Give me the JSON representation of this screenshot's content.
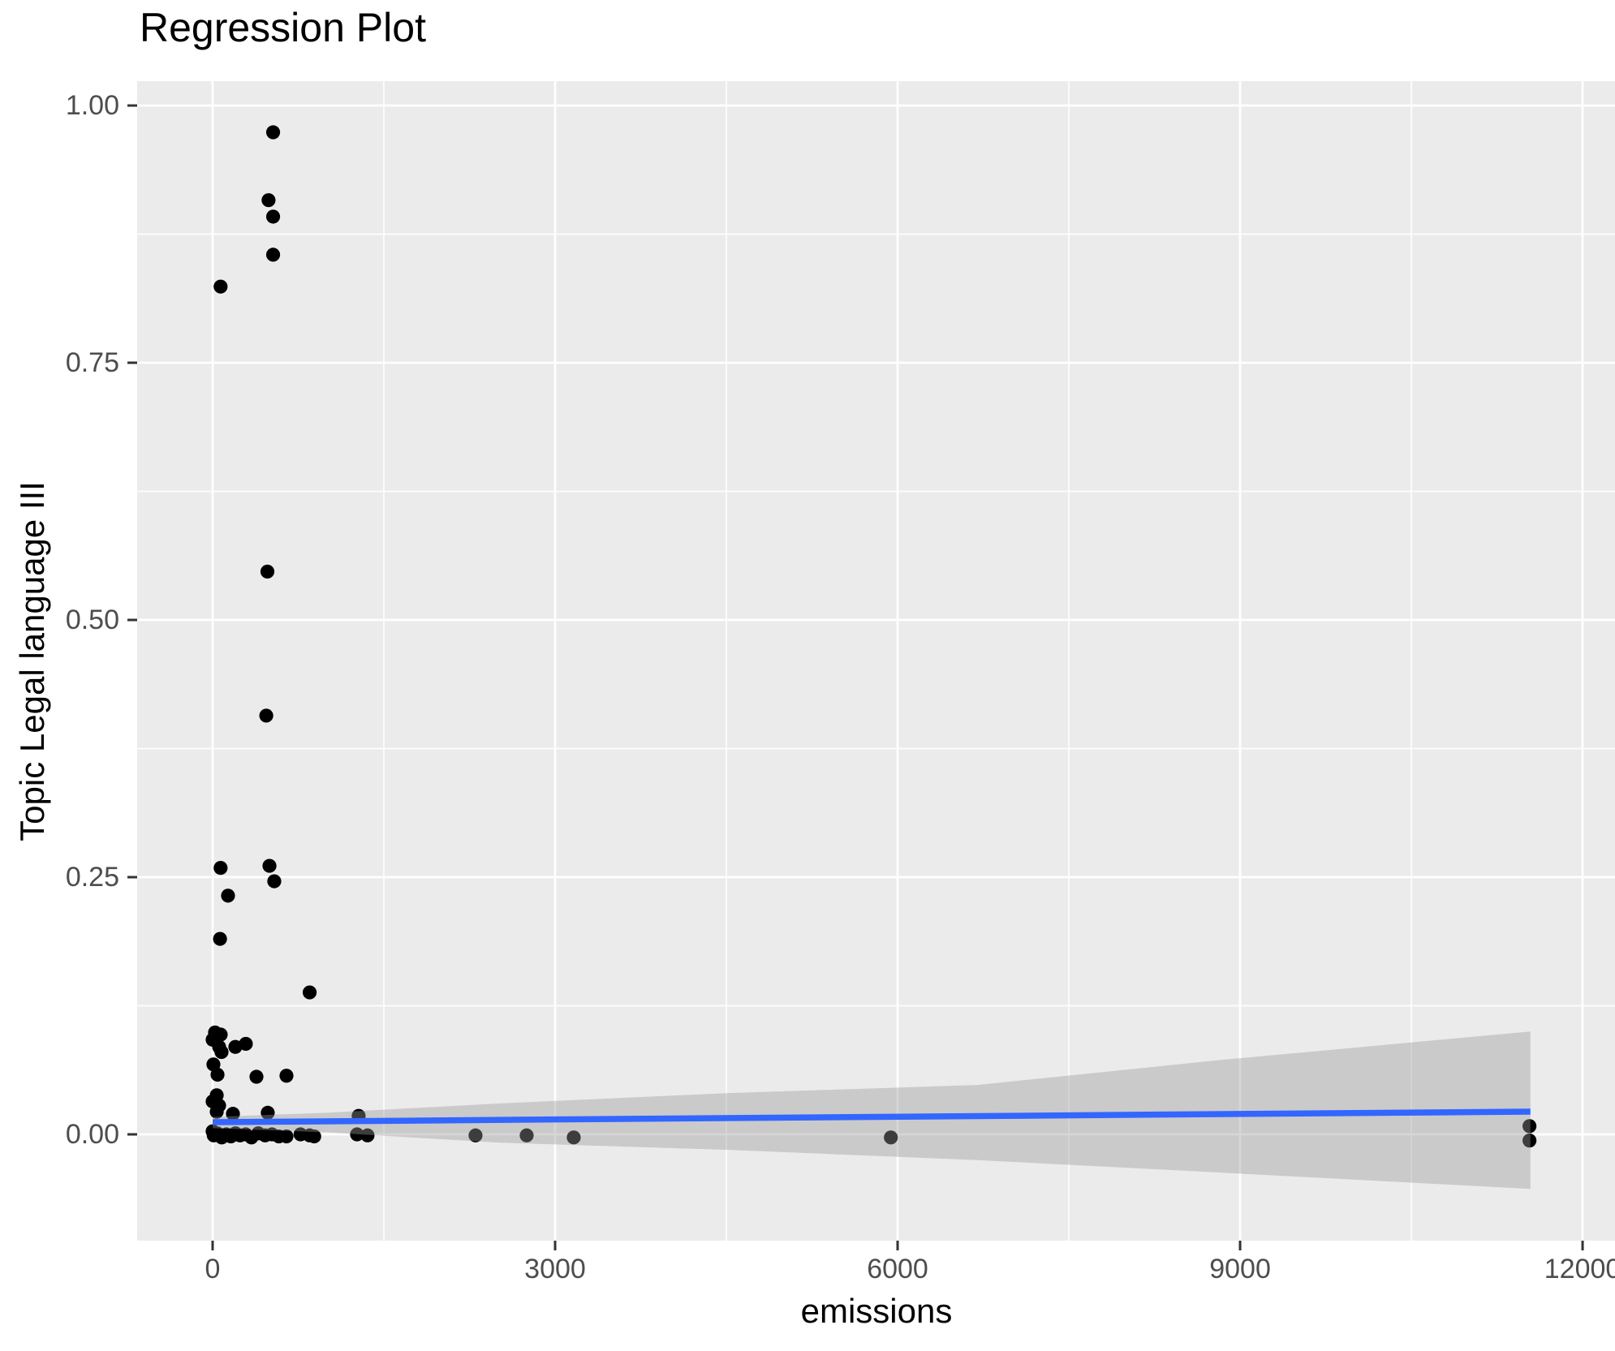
{
  "title": "Regression Plot",
  "x_axis": {
    "label": "emissions",
    "tick_labels": [
      "0",
      "3000",
      "6000",
      "9000",
      "12000"
    ],
    "tick_values": [
      0,
      3000,
      6000,
      9000,
      12000
    ],
    "minor_values": [
      1500,
      4500,
      7500,
      10500
    ]
  },
  "y_axis": {
    "label": "Topic Legal language III",
    "tick_labels": [
      "0.00",
      "0.25",
      "0.50",
      "0.75",
      "1.00"
    ],
    "tick_values": [
      0,
      0.25,
      0.5,
      0.75,
      1.0
    ],
    "minor_values": [
      0.125,
      0.375,
      0.625,
      0.875
    ]
  },
  "colors": {
    "background": "#FFFFFF",
    "panel": "#EBEBEB",
    "gridline": "#FFFFFF",
    "point": "#000000",
    "regression_line": "#3366FF",
    "confidence_band": "#999999",
    "tick_mark": "#333333",
    "tick_label": "#4D4D4D",
    "title_text": "#000000"
  },
  "chart_data": {
    "type": "scatter",
    "title": "Regression Plot",
    "xlabel": "emissions",
    "ylabel": "Topic Legal language III",
    "xlim": [
      -661,
      12284
    ],
    "ylim": [
      -0.1033,
      1.0237
    ],
    "grid": "on",
    "legend": "none",
    "points": [
      [
        530,
        0.974
      ],
      [
        490,
        0.908
      ],
      [
        530,
        0.892
      ],
      [
        530,
        0.855
      ],
      [
        70,
        0.824
      ],
      [
        480,
        0.547
      ],
      [
        470,
        0.407
      ],
      [
        70,
        0.259
      ],
      [
        498,
        0.261
      ],
      [
        540,
        0.246
      ],
      [
        135,
        0.232
      ],
      [
        65,
        0.19
      ],
      [
        850,
        0.138
      ],
      [
        21,
        0.099
      ],
      [
        71,
        0.097
      ],
      [
        0,
        0.092
      ],
      [
        57,
        0.085
      ],
      [
        199,
        0.085
      ],
      [
        291,
        0.088
      ],
      [
        78,
        0.08
      ],
      [
        7,
        0.068
      ],
      [
        43,
        0.058
      ],
      [
        384,
        0.056
      ],
      [
        647,
        0.057
      ],
      [
        36,
        0.038
      ],
      [
        0,
        0.032
      ],
      [
        57,
        0.028
      ],
      [
        36,
        0.022
      ],
      [
        178,
        0.02
      ],
      [
        483,
        0.021
      ],
      [
        1279,
        0.018
      ],
      [
        0,
        0.003
      ],
      [
        10,
        -0.001
      ],
      [
        40,
        0.001
      ],
      [
        80,
        -0.003
      ],
      [
        120,
        0.0
      ],
      [
        160,
        -0.002
      ],
      [
        200,
        0.001
      ],
      [
        240,
        -0.001
      ],
      [
        290,
        0.0
      ],
      [
        340,
        -0.003
      ],
      [
        400,
        0.001
      ],
      [
        460,
        -0.001
      ],
      [
        520,
        0.0
      ],
      [
        580,
        -0.002
      ],
      [
        647,
        -0.002
      ],
      [
        770,
        0.0
      ],
      [
        850,
        -0.001
      ],
      [
        890,
        -0.002
      ],
      [
        1265,
        0.0
      ],
      [
        1357,
        -0.001
      ],
      [
        2303,
        -0.001
      ],
      [
        2751,
        -0.001
      ],
      [
        3163,
        -0.003
      ],
      [
        5941,
        -0.003
      ],
      [
        11535,
        0.008
      ],
      [
        11535,
        -0.006
      ]
    ],
    "regression_line": {
      "points": [
        [
          0,
          0.0118
        ],
        [
          11543,
          0.0221
        ]
      ]
    },
    "confidence_band": {
      "x": [
        0,
        1000,
        2500,
        4500,
        6700,
        8800,
        11543
      ],
      "upper": [
        0.017,
        0.021,
        0.03,
        0.04,
        0.048,
        0.072,
        0.1
      ],
      "lower": [
        0.006,
        0.002,
        -0.008,
        -0.015,
        -0.025,
        -0.037,
        -0.053
      ]
    }
  }
}
